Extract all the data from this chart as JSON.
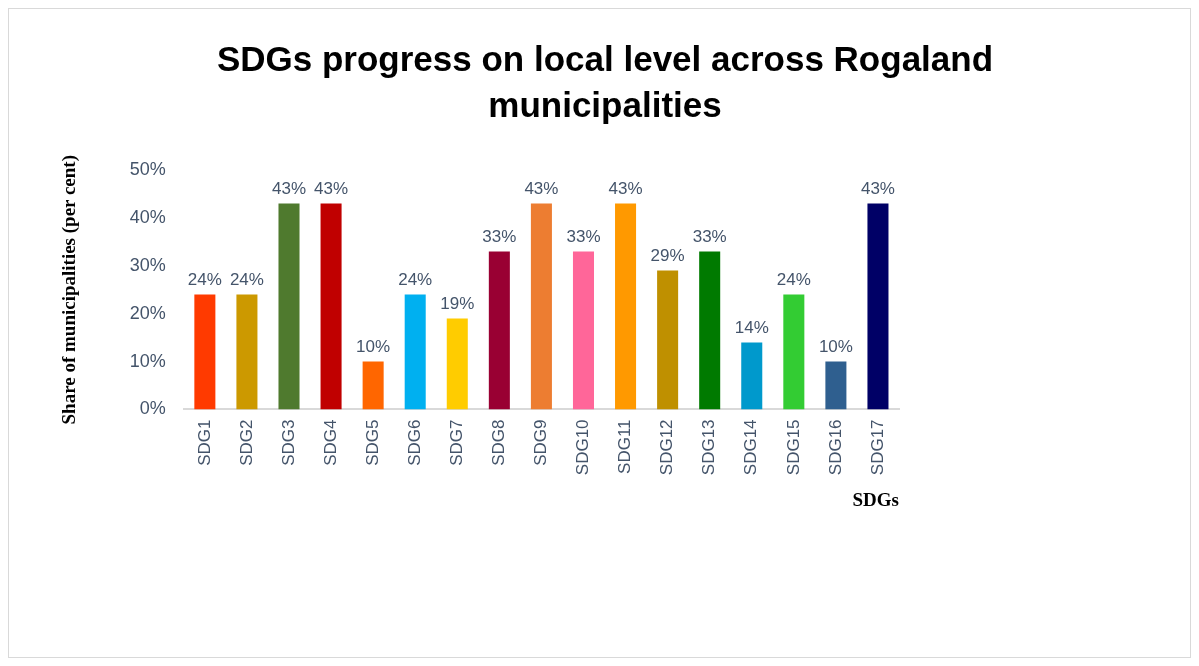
{
  "chart_data": {
    "type": "bar",
    "title": "SDGs progress on local level across Rogaland municipalities",
    "xlabel": "SDGs",
    "ylabel": "Share of municipalities (per cent)",
    "categories": [
      "SDG1",
      "SDG2",
      "SDG3",
      "SDG4",
      "SDG5",
      "SDG6",
      "SDG7",
      "SDG8",
      "SDG9",
      "SDG10",
      "SDG11",
      "SDG12",
      "SDG13",
      "SDG14",
      "SDG15",
      "SDG16",
      "SDG17"
    ],
    "values": [
      24,
      24,
      43,
      43,
      10,
      24,
      19,
      33,
      43,
      33,
      43,
      29,
      33,
      14,
      24,
      10,
      43
    ],
    "value_labels": [
      "24%",
      "24%",
      "43%",
      "43%",
      "10%",
      "24%",
      "19%",
      "33%",
      "43%",
      "33%",
      "43%",
      "29%",
      "33%",
      "14%",
      "24%",
      "10%",
      "43%"
    ],
    "colors": [
      "#ff3a00",
      "#cc9900",
      "#4f7a2e",
      "#c00000",
      "#ff6600",
      "#00b0f0",
      "#ffcc00",
      "#990033",
      "#ed7d31",
      "#ff6699",
      "#ff9900",
      "#bf9000",
      "#007a00",
      "#0099cc",
      "#33cc33",
      "#2f5f8f",
      "#000066"
    ],
    "ylim": [
      0,
      50
    ],
    "yticks": [
      {
        "value": 0,
        "label": "0%"
      },
      {
        "value": 10,
        "label": "10%"
      },
      {
        "value": 20,
        "label": "20%"
      },
      {
        "value": 30,
        "label": "30%"
      },
      {
        "value": 40,
        "label": "40%"
      },
      {
        "value": 50,
        "label": "50%"
      }
    ],
    "grid": false,
    "legend": false
  }
}
